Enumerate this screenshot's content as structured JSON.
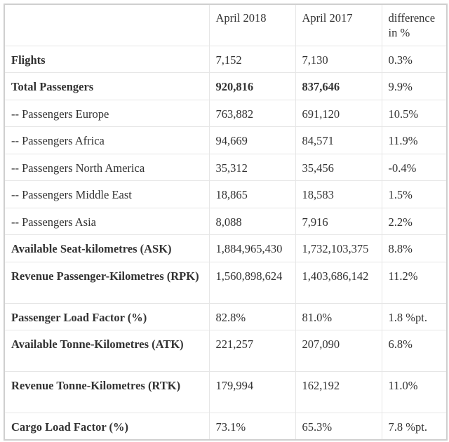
{
  "table": {
    "headers": [
      "",
      "April 2018",
      "April 2017",
      "difference in %"
    ],
    "rows": [
      {
        "label": "Flights",
        "apr2018": "7,152",
        "apr2017": "7,130",
        "diff": "0.3%",
        "bold_label": true,
        "bold_values": false
      },
      {
        "label": "Total Passengers",
        "apr2018": "920,816",
        "apr2017": "837,646",
        "diff": "9.9%",
        "bold_label": true,
        "bold_values": true
      },
      {
        "label": "-- Passengers Europe",
        "apr2018": "763,882",
        "apr2017": "691,120",
        "diff": "10.5%",
        "bold_label": false,
        "bold_values": false
      },
      {
        "label": "-- Passengers Africa",
        "apr2018": "94,669",
        "apr2017": "84,571",
        "diff": "11.9%",
        "bold_label": false,
        "bold_values": false
      },
      {
        "label": "-- Passengers North America",
        "apr2018": "35,312",
        "apr2017": "35,456",
        "diff": "-0.4%",
        "bold_label": false,
        "bold_values": false
      },
      {
        "label": "-- Passengers Middle East",
        "apr2018": "18,865",
        "apr2017": "18,583",
        "diff": "1.5%",
        "bold_label": false,
        "bold_values": false
      },
      {
        "label": "-- Passengers Asia",
        "apr2018": "8,088",
        "apr2017": "7,916",
        "diff": "2.2%",
        "bold_label": false,
        "bold_values": false
      },
      {
        "label": "Available Seat-kilometres  (ASK)",
        "apr2018": "1,884,965,430",
        "apr2017": "1,732,103,375",
        "diff": "8.8%",
        "bold_label": true,
        "bold_values": false
      },
      {
        "label": "Revenue Passenger-Kilometres (RPK)",
        "apr2018": "1,560,898,624",
        "apr2017": "1,403,686,142",
        "diff": "11.2%",
        "bold_label": true,
        "bold_values": false,
        "tall": true
      },
      {
        "label": "Passenger Load Factor (%)",
        "apr2018": "82.8%",
        "apr2017": "81.0%",
        "diff": "1.8 %pt.",
        "bold_label": true,
        "bold_values": false
      },
      {
        "label": "Available Tonne-Kilometres (ATK)",
        "apr2018": "221,257",
        "apr2017": "207,090",
        "diff": "6.8%",
        "bold_label": true,
        "bold_values": false,
        "tall": true
      },
      {
        "label": "Revenue Tonne-Kilometres (RTK)",
        "apr2018": "179,994",
        "apr2017": "162,192",
        "diff": "11.0%",
        "bold_label": true,
        "bold_values": false,
        "tall": true
      },
      {
        "label": "Cargo Load Factor (%)",
        "apr2018": "73.1%",
        "apr2017": "65.3%",
        "diff": "7.8  %pt.",
        "bold_label": true,
        "bold_values": false
      }
    ]
  }
}
